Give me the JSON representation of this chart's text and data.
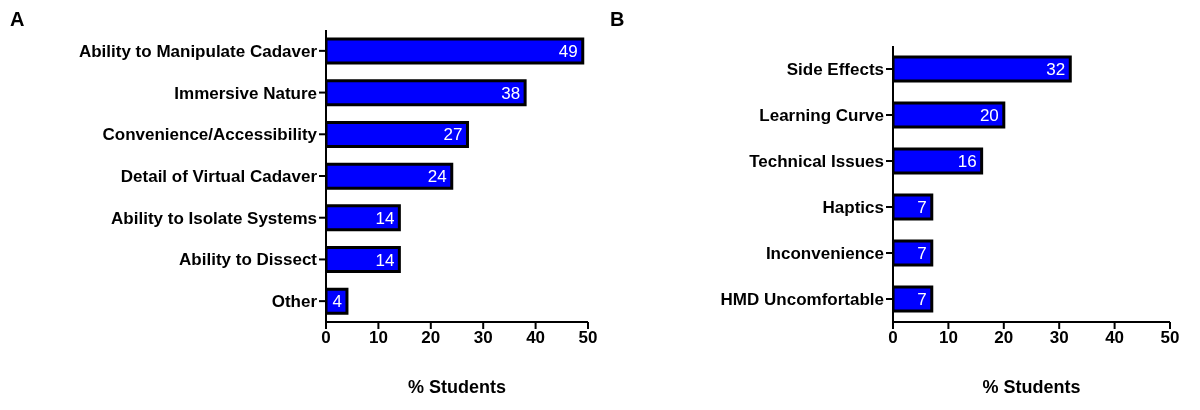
{
  "chart_data": [
    {
      "type": "bar",
      "title": "A",
      "orientation": "horizontal",
      "categories": [
        "Ability to Manipulate Cadaver",
        "Immersive Nature",
        "Convenience/Accessibility",
        "Detail of Virtual Cadaver",
        "Ability to Isolate Systems",
        "Ability to Dissect",
        "Other"
      ],
      "values": [
        49,
        38,
        27,
        24,
        14,
        14,
        4
      ],
      "color": "#0000ff",
      "xlim": [
        0,
        50
      ],
      "xticks": [
        0,
        10,
        20,
        30,
        40,
        50
      ],
      "xlabel": "% Students",
      "data_labels": true,
      "grid": false,
      "legend": false
    },
    {
      "type": "bar",
      "title": "B",
      "orientation": "horizontal",
      "categories": [
        "Side Effects",
        "Learning Curve",
        "Technical Issues",
        "Haptics",
        "Inconvenience",
        "HMD Uncomfortable"
      ],
      "values": [
        32,
        20,
        16,
        7,
        7,
        7
      ],
      "color": "#0000ff",
      "xlim": [
        0,
        50
      ],
      "xticks": [
        0,
        10,
        20,
        30,
        40,
        50
      ],
      "xlabel": "% Students",
      "data_labels": true,
      "grid": false,
      "legend": false
    }
  ]
}
